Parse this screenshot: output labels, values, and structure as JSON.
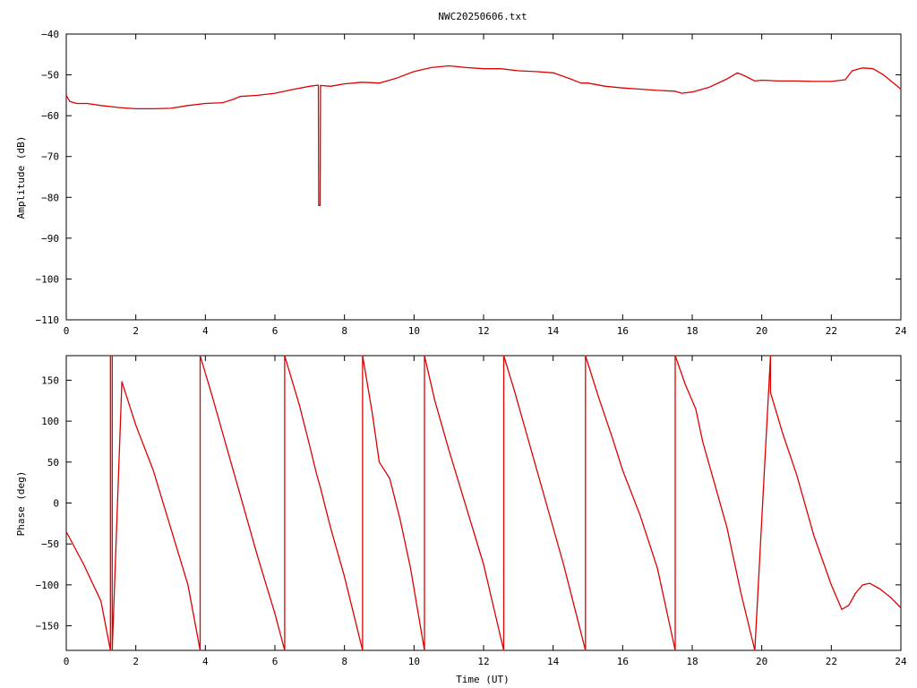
{
  "title": "NWC20250606.txt",
  "colors": {
    "series": "#dd0000",
    "axis": "#000000",
    "background": "#ffffff"
  },
  "chart_data": [
    {
      "type": "line",
      "ylabel": "Amplitude (dB)",
      "xlim": [
        0,
        24
      ],
      "ylim": [
        -110,
        -40
      ],
      "xticks": [
        0,
        2,
        4,
        6,
        8,
        10,
        12,
        14,
        16,
        18,
        20,
        22,
        24
      ],
      "yticks": [
        -110,
        -100,
        -90,
        -80,
        -70,
        -60,
        -50,
        -40
      ],
      "series": [
        {
          "x": [
            0,
            0.1,
            0.3,
            0.6,
            1.0,
            1.5,
            2.0,
            2.5,
            3.0,
            3.5,
            4.0,
            4.5,
            4.8,
            5.0,
            5.5,
            6.0,
            6.5,
            7.0,
            7.25,
            7.26,
            7.3,
            7.31,
            7.6,
            8.0,
            8.5,
            9.0,
            9.5,
            10.0,
            10.5,
            11.0,
            11.5,
            12.0,
            12.5,
            13.0,
            13.5,
            14.0,
            14.5,
            14.8,
            15.0,
            15.5,
            16.0,
            16.5,
            17.0,
            17.5,
            17.7,
            18.0,
            18.5,
            19.0,
            19.3,
            19.5,
            19.8,
            20.0,
            20.5,
            21.0,
            21.5,
            22.0,
            22.4,
            22.6,
            22.9,
            23.2,
            23.5,
            24.0
          ],
          "y": [
            -55,
            -56.5,
            -57,
            -57,
            -57.5,
            -58,
            -58.3,
            -58.3,
            -58.2,
            -57.5,
            -57,
            -56.8,
            -56,
            -55.3,
            -55,
            -54.5,
            -53.6,
            -52.8,
            -52.5,
            -82,
            -82,
            -52.6,
            -52.8,
            -52.2,
            -51.8,
            -52,
            -50.8,
            -49.2,
            -48.2,
            -47.8,
            -48.2,
            -48.5,
            -48.5,
            -49,
            -49.2,
            -49.5,
            -51,
            -52,
            -52,
            -52.8,
            -53.2,
            -53.5,
            -53.8,
            -54,
            -54.5,
            -54.2,
            -53,
            -51,
            -49.5,
            -50.2,
            -51.5,
            -51.3,
            -51.5,
            -51.5,
            -51.6,
            -51.6,
            -51.2,
            -49,
            -48.3,
            -48.5,
            -50,
            -53.5
          ]
        }
      ]
    },
    {
      "type": "line",
      "xlabel": "Time (UT)",
      "ylabel": "Phase (deg)",
      "xlim": [
        0,
        24
      ],
      "ylim": [
        -180,
        180
      ],
      "xticks": [
        0,
        2,
        4,
        6,
        8,
        10,
        12,
        14,
        16,
        18,
        20,
        22,
        24
      ],
      "yticks": [
        -150,
        -100,
        -50,
        0,
        50,
        100,
        150
      ],
      "series": [
        {
          "x": [
            0,
            0.5,
            1.0,
            1.27,
            1.27,
            1.32,
            1.32,
            1.6,
            2.0,
            2.5,
            3.0,
            3.5,
            3.85,
            3.85,
            4.2,
            4.6,
            5.0,
            5.5,
            6.0,
            6.28,
            6.28,
            6.7,
            7.0,
            7.2,
            7.3,
            7.6,
            8.0,
            8.52,
            8.52,
            8.8,
            9.0,
            9.3,
            9.6,
            9.9,
            10.3,
            10.3,
            10.6,
            11.0,
            11.5,
            12.0,
            12.58,
            12.58,
            12.9,
            13.3,
            13.8,
            14.3,
            14.93,
            14.93,
            15.3,
            15.7,
            16.0,
            16.5,
            17.0,
            17.51,
            17.51,
            17.8,
            18.1,
            18.3,
            18.6,
            19.0,
            19.4,
            19.8,
            20.25,
            20.25,
            20.6,
            21.0,
            21.5,
            22.0,
            22.3,
            22.5,
            22.7,
            22.9,
            23.1,
            23.4,
            23.7,
            24.0
          ],
          "y": [
            -35,
            -75,
            -120,
            -180,
            180,
            180,
            -180,
            148,
            95,
            40,
            -30,
            -100,
            -180,
            180,
            130,
            70,
            10,
            -65,
            -135,
            -180,
            180,
            120,
            70,
            35,
            20,
            -30,
            -90,
            -180,
            180,
            110,
            50,
            30,
            -20,
            -80,
            -180,
            180,
            125,
            65,
            -5,
            -75,
            -180,
            180,
            135,
            75,
            0,
            -75,
            -180,
            180,
            130,
            80,
            40,
            -15,
            -80,
            -180,
            180,
            145,
            115,
            75,
            30,
            -30,
            -110,
            -180,
            180,
            135,
            85,
            35,
            -40,
            -100,
            -130,
            -125,
            -110,
            -100,
            -98,
            -105,
            -115,
            -128
          ]
        }
      ]
    }
  ]
}
